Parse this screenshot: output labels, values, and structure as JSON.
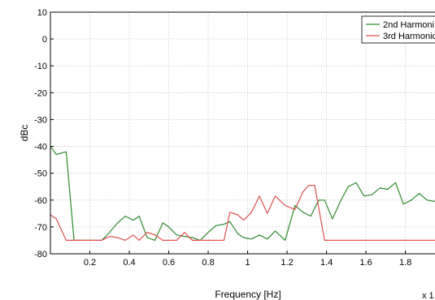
{
  "chart_data": {
    "type": "line",
    "title": "",
    "xlabel": "Frequency [Hz]",
    "ylabel": "dBc",
    "x_multiplier_label": "x 1",
    "xlim": [
      0,
      1.95
    ],
    "ylim": [
      -80,
      10
    ],
    "xticks": [
      0.2,
      0.4,
      0.6,
      0.8,
      1,
      1.2,
      1.4,
      1.6,
      1.8
    ],
    "xtick_labels": [
      "0.2",
      "0.4",
      "0.6",
      "0.8",
      "1",
      "1.2",
      "1.4",
      "1.6",
      "1.8"
    ],
    "yticks": [
      10,
      0,
      -10,
      -20,
      -30,
      -40,
      -50,
      -60,
      -70,
      -80
    ],
    "ytick_labels": [
      "10",
      "0",
      "-10",
      "-20",
      "-30",
      "-40",
      "-50",
      "-60",
      "-70",
      "-80"
    ],
    "grid": true,
    "legend": "top-right",
    "series": [
      {
        "name": "2nd Harmoni",
        "color": "#2e8b2e",
        "points": [
          [
            0.0,
            -40
          ],
          [
            0.03,
            -43
          ],
          [
            0.08,
            -42
          ],
          [
            0.12,
            -75
          ],
          [
            0.26,
            -75
          ],
          [
            0.3,
            -72
          ],
          [
            0.34,
            -68.5
          ],
          [
            0.38,
            -66
          ],
          [
            0.42,
            -67.5
          ],
          [
            0.45,
            -66
          ],
          [
            0.49,
            -74
          ],
          [
            0.53,
            -75
          ],
          [
            0.57,
            -68.5
          ],
          [
            0.6,
            -70
          ],
          [
            0.64,
            -73
          ],
          [
            0.68,
            -73.5
          ],
          [
            0.72,
            -74
          ],
          [
            0.76,
            -75
          ],
          [
            0.8,
            -72
          ],
          [
            0.84,
            -69.5
          ],
          [
            0.88,
            -69
          ],
          [
            0.91,
            -68
          ],
          [
            0.95,
            -72.5
          ],
          [
            0.98,
            -74
          ],
          [
            1.02,
            -74.5
          ],
          [
            1.06,
            -73
          ],
          [
            1.1,
            -74.5
          ],
          [
            1.14,
            -71.5
          ],
          [
            1.19,
            -75
          ],
          [
            1.24,
            -62
          ],
          [
            1.28,
            -64.5
          ],
          [
            1.32,
            -66
          ],
          [
            1.36,
            -60
          ],
          [
            1.39,
            -60
          ],
          [
            1.43,
            -67
          ],
          [
            1.47,
            -60.5
          ],
          [
            1.51,
            -55
          ],
          [
            1.55,
            -53.5
          ],
          [
            1.59,
            -58.5
          ],
          [
            1.63,
            -58
          ],
          [
            1.67,
            -55.5
          ],
          [
            1.71,
            -56
          ],
          [
            1.75,
            -53.5
          ],
          [
            1.79,
            -61.5
          ],
          [
            1.83,
            -60
          ],
          [
            1.87,
            -57.5
          ],
          [
            1.91,
            -60
          ],
          [
            1.95,
            -60.5
          ]
        ]
      },
      {
        "name": "3rd Harmonic",
        "color": "#e05050",
        "points": [
          [
            0.0,
            -65.5
          ],
          [
            0.03,
            -67
          ],
          [
            0.08,
            -75
          ],
          [
            0.26,
            -75
          ],
          [
            0.3,
            -73.5
          ],
          [
            0.34,
            -74
          ],
          [
            0.38,
            -75
          ],
          [
            0.42,
            -73
          ],
          [
            0.45,
            -75
          ],
          [
            0.49,
            -72
          ],
          [
            0.53,
            -73
          ],
          [
            0.57,
            -75
          ],
          [
            0.64,
            -75
          ],
          [
            0.68,
            -72
          ],
          [
            0.72,
            -75
          ],
          [
            0.88,
            -75
          ],
          [
            0.91,
            -64.5
          ],
          [
            0.95,
            -65.5
          ],
          [
            0.98,
            -67.5
          ],
          [
            1.02,
            -64.5
          ],
          [
            1.06,
            -58.5
          ],
          [
            1.1,
            -65
          ],
          [
            1.14,
            -58.5
          ],
          [
            1.19,
            -62
          ],
          [
            1.24,
            -63.5
          ],
          [
            1.28,
            -57
          ],
          [
            1.31,
            -54.5
          ],
          [
            1.34,
            -54.5
          ],
          [
            1.39,
            -75
          ],
          [
            1.95,
            -75
          ]
        ]
      }
    ]
  }
}
